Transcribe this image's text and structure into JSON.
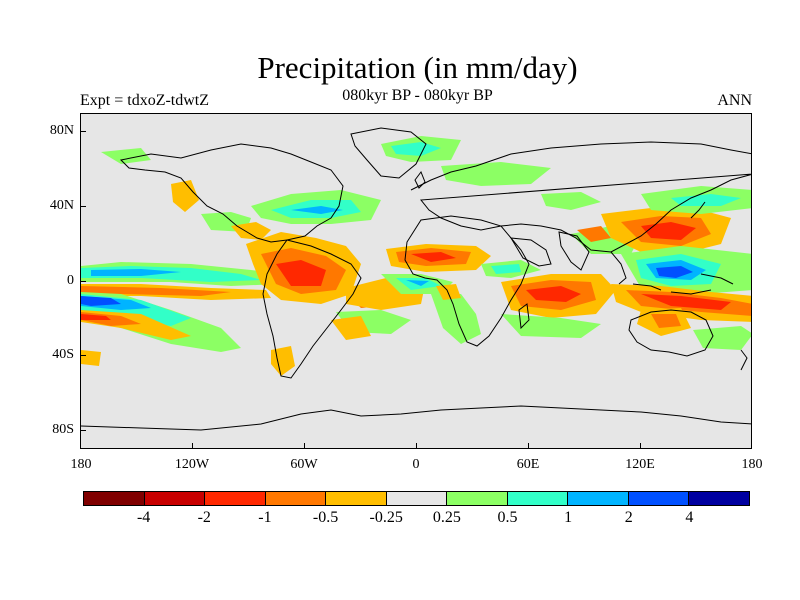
{
  "title": "Precipitation (in mm/day)",
  "subtitle": "080kyr BP - 080kyr BP",
  "left_label": "Expt = tdxoZ-tdwtZ",
  "right_label": "ANN",
  "y_axis": {
    "ticks": [
      {
        "label": "80N",
        "lat": 80
      },
      {
        "label": "40N",
        "lat": 40
      },
      {
        "label": "0",
        "lat": 0
      },
      {
        "label": "40S",
        "lat": -40
      },
      {
        "label": "80S",
        "lat": -80
      }
    ]
  },
  "x_axis": {
    "ticks": [
      {
        "label": "180",
        "lon": -180
      },
      {
        "label": "120W",
        "lon": -120
      },
      {
        "label": "60W",
        "lon": -60
      },
      {
        "label": "0",
        "lon": 0
      },
      {
        "label": "60E",
        "lon": 60
      },
      {
        "label": "120E",
        "lon": 120
      },
      {
        "label": "180",
        "lon": 180
      }
    ]
  },
  "colorbar": {
    "colors": [
      "#800000",
      "#c80000",
      "#ff2800",
      "#ff7800",
      "#ffbe00",
      "#e6e6e6",
      "#8cff64",
      "#32ffc8",
      "#00b4ff",
      "#0050ff",
      "#0000a0"
    ],
    "labels": [
      "-4",
      "-2",
      "-1",
      "-0.5",
      "-0.25",
      "0.25",
      "0.5",
      "1",
      "2",
      "4"
    ]
  },
  "colors": {
    "background": "#e6e6e6",
    "coast": "#000000"
  }
}
